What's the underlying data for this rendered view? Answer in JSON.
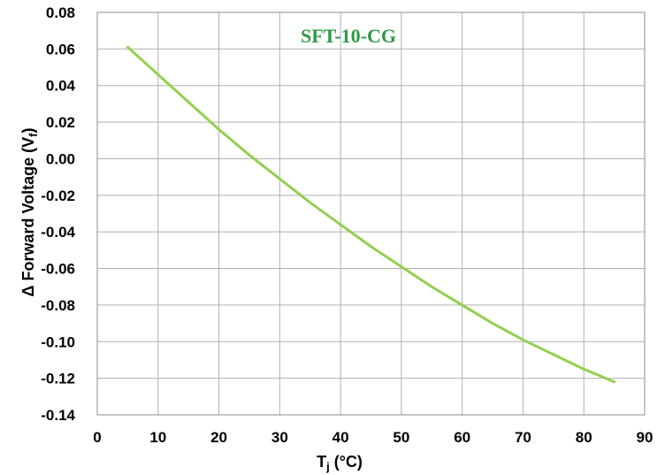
{
  "chart_data": {
    "type": "line",
    "title": "SFT-10-CG",
    "xlabel_main": "T",
    "xlabel_sub": "j",
    "xlabel_unit": " (°C)",
    "ylabel_main": "Δ Forward Voltage (V",
    "ylabel_sub": "f",
    "ylabel_end": ")",
    "xlim": [
      0,
      90
    ],
    "ylim": [
      -0.14,
      0.08
    ],
    "xticks": [
      "0",
      "10",
      "20",
      "30",
      "40",
      "50",
      "60",
      "70",
      "80",
      "90"
    ],
    "yticks": [
      "0.08",
      "0.06",
      "0.04",
      "0.02",
      "0.00",
      "-0.02",
      "-0.04",
      "-0.06",
      "-0.08",
      "-0.10",
      "-0.12",
      "-0.14"
    ],
    "grid": true,
    "series": [
      {
        "x": [
          5,
          10,
          15,
          20,
          25,
          30,
          35,
          40,
          45,
          50,
          55,
          60,
          65,
          70,
          75,
          80,
          85
        ],
        "y": [
          0.061,
          0.046,
          0.031,
          0.016,
          0.002,
          -0.011,
          -0.024,
          -0.036,
          -0.048,
          -0.059,
          -0.07,
          -0.08,
          -0.09,
          -0.099,
          -0.107,
          -0.115,
          -0.122
        ]
      }
    ]
  },
  "colors": {
    "series": "#92d050",
    "title": "#2e9a45"
  }
}
